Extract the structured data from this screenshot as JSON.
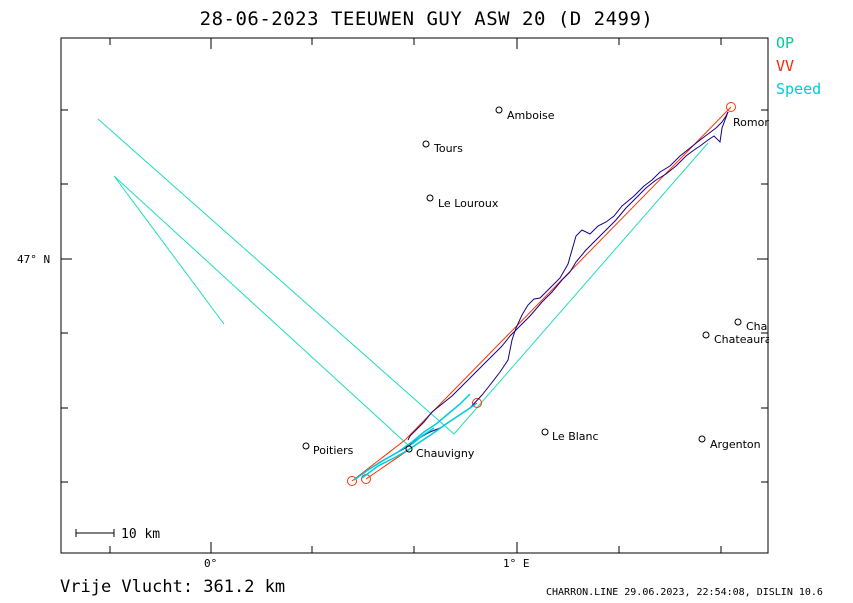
{
  "title": "28-06-2023   TEEUWEN GUY   ASW 20 (D 2499)",
  "legend": [
    {
      "label": "OP",
      "color": "#00cc99"
    },
    {
      "label": "VV",
      "color": "#ff2200"
    },
    {
      "label": "Speed",
      "color": "#00ccdd"
    }
  ],
  "axes": {
    "lat_label": "47° N",
    "lon_labels": [
      "0°",
      "1° E"
    ]
  },
  "scale_bar": {
    "label": "10 km"
  },
  "cities": [
    {
      "name": "Amboise"
    },
    {
      "name": "Tours"
    },
    {
      "name": "Le Louroux"
    },
    {
      "name": "Romor"
    },
    {
      "name": "Cha"
    },
    {
      "name": "Chateaura"
    },
    {
      "name": "Poitiers"
    },
    {
      "name": "Chauvigny"
    },
    {
      "name": "Le Blanc"
    },
    {
      "name": "Argenton"
    }
  ],
  "footer": {
    "distance": "Vrije Vlucht:  361.2 km",
    "credit": "CHARRON.LINE 29.06.2023, 22:54:08, DISLIN 10.6"
  },
  "colors": {
    "track": "#1a0080",
    "op": "#00cc99",
    "vv": "#ff2200",
    "speed": "#00ccdd"
  }
}
